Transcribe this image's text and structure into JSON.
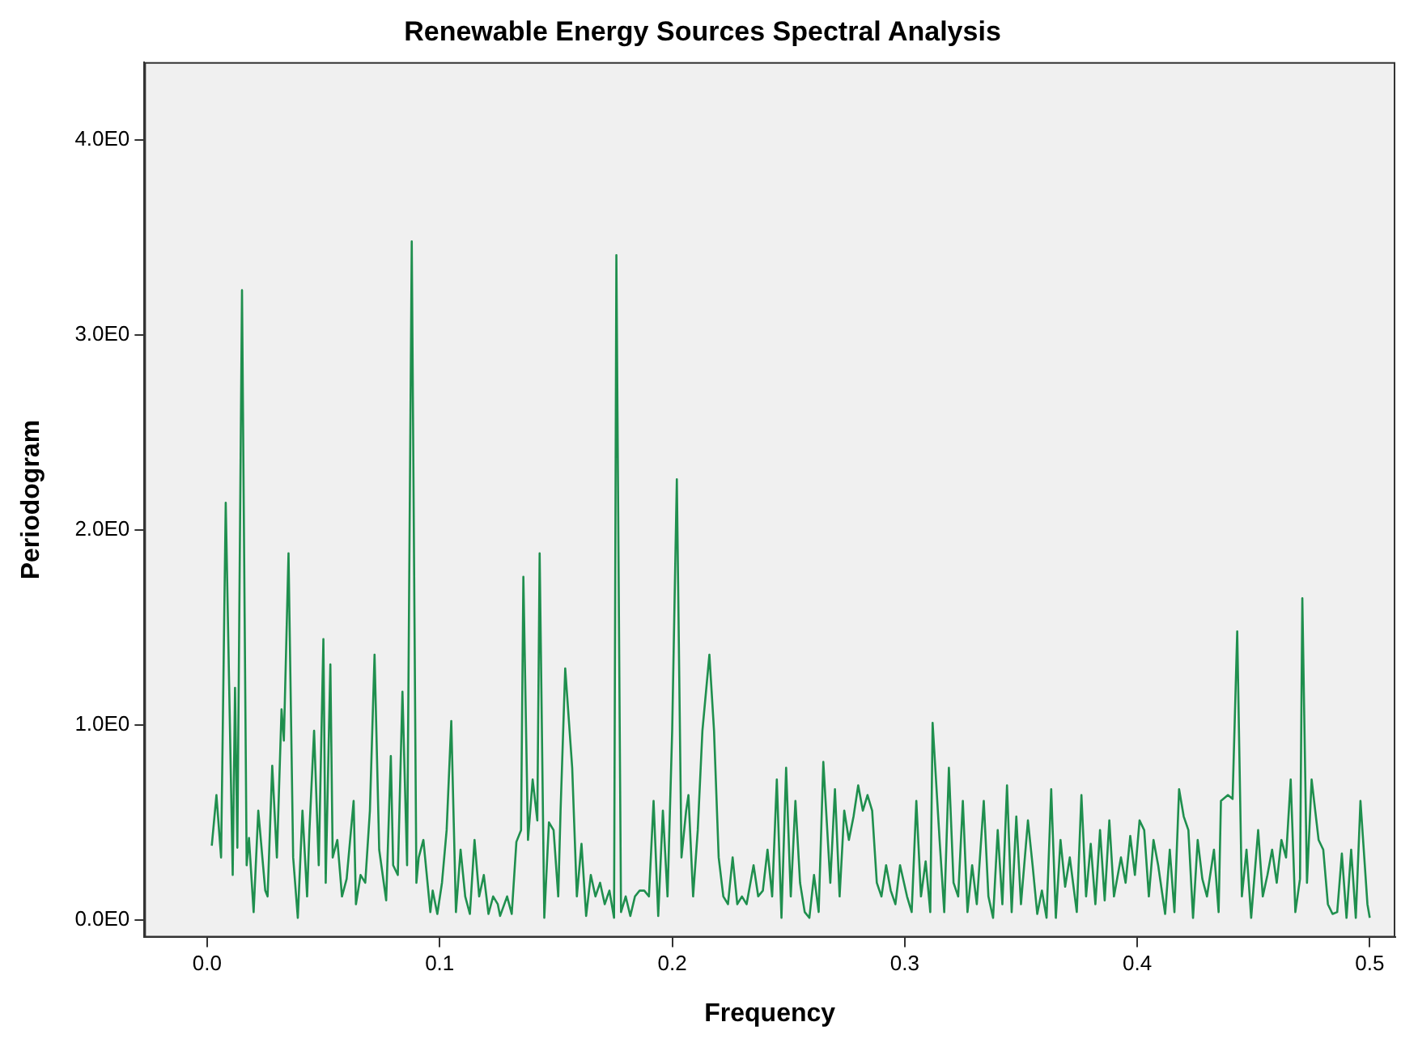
{
  "chart_data": {
    "type": "line",
    "title": "Renewable Energy Sources Spectral Analysis",
    "xlabel": "Frequency",
    "ylabel": "Periodogram",
    "grid": false,
    "legend": false,
    "marker": "none",
    "line_style": "solid",
    "xlim": [
      -0.027,
      0.511
    ],
    "xticks": [
      {
        "value": 0,
        "label": "0.0"
      },
      {
        "value": 0.1,
        "label": "0.1"
      },
      {
        "value": 0.2,
        "label": "0.2"
      },
      {
        "value": 0.3,
        "label": "0.3"
      },
      {
        "value": 0.4,
        "label": "0.4"
      },
      {
        "value": 0.5,
        "label": "0.5"
      }
    ],
    "ylim": [
      -0.09,
      4.4
    ],
    "yticks": [
      {
        "value": 0,
        "label": "0.0E0"
      },
      {
        "value": 1,
        "label": "1.0E0"
      },
      {
        "value": 2,
        "label": "2.0E0"
      },
      {
        "value": 3,
        "label": "3.0E0"
      },
      {
        "value": 4,
        "label": "4.0E0"
      }
    ],
    "series": [
      {
        "color": "#1f8f4e",
        "x": [
          0.002,
          0.004,
          0.006,
          0.008,
          0.011,
          0.012,
          0.013,
          0.015,
          0.017,
          0.018,
          0.02,
          0.022,
          0.025,
          0.026,
          0.028,
          0.03,
          0.032,
          0.033,
          0.035,
          0.037,
          0.039,
          0.041,
          0.043,
          0.044,
          0.046,
          0.048,
          0.05,
          0.051,
          0.053,
          0.054,
          0.056,
          0.058,
          0.06,
          0.063,
          0.064,
          0.066,
          0.068,
          0.07,
          0.072,
          0.074,
          0.077,
          0.079,
          0.08,
          0.082,
          0.084,
          0.086,
          0.088,
          0.09,
          0.091,
          0.093,
          0.096,
          0.097,
          0.099,
          0.101,
          0.103,
          0.105,
          0.107,
          0.109,
          0.111,
          0.113,
          0.115,
          0.117,
          0.119,
          0.121,
          0.123,
          0.125,
          0.126,
          0.129,
          0.131,
          0.133,
          0.135,
          0.136,
          0.138,
          0.14,
          0.142,
          0.143,
          0.145,
          0.147,
          0.149,
          0.151,
          0.152,
          0.154,
          0.157,
          0.159,
          0.161,
          0.163,
          0.165,
          0.167,
          0.169,
          0.171,
          0.173,
          0.175,
          0.176,
          0.178,
          0.18,
          0.182,
          0.184,
          0.186,
          0.188,
          0.19,
          0.192,
          0.194,
          0.196,
          0.198,
          0.2,
          0.202,
          0.204,
          0.206,
          0.207,
          0.209,
          0.211,
          0.213,
          0.216,
          0.218,
          0.22,
          0.222,
          0.224,
          0.226,
          0.228,
          0.23,
          0.232,
          0.235,
          0.237,
          0.239,
          0.241,
          0.243,
          0.245,
          0.247,
          0.249,
          0.251,
          0.253,
          0.255,
          0.257,
          0.259,
          0.261,
          0.263,
          0.265,
          0.268,
          0.27,
          0.272,
          0.274,
          0.276,
          0.278,
          0.28,
          0.282,
          0.284,
          0.286,
          0.288,
          0.29,
          0.292,
          0.294,
          0.296,
          0.298,
          0.301,
          0.303,
          0.305,
          0.307,
          0.309,
          0.311,
          0.312,
          0.315,
          0.317,
          0.319,
          0.321,
          0.323,
          0.325,
          0.327,
          0.329,
          0.331,
          0.334,
          0.336,
          0.338,
          0.34,
          0.342,
          0.344,
          0.346,
          0.348,
          0.35,
          0.353,
          0.355,
          0.357,
          0.359,
          0.361,
          0.363,
          0.365,
          0.367,
          0.369,
          0.371,
          0.374,
          0.376,
          0.378,
          0.38,
          0.382,
          0.384,
          0.386,
          0.388,
          0.39,
          0.393,
          0.395,
          0.397,
          0.399,
          0.401,
          0.403,
          0.405,
          0.407,
          0.409,
          0.412,
          0.414,
          0.416,
          0.418,
          0.42,
          0.422,
          0.424,
          0.426,
          0.428,
          0.43,
          0.433,
          0.435,
          0.436,
          0.439,
          0.441,
          0.443,
          0.445,
          0.447,
          0.449,
          0.452,
          0.454,
          0.456,
          0.458,
          0.46,
          0.462,
          0.464,
          0.466,
          0.468,
          0.47,
          0.471,
          0.473,
          0.475,
          0.478,
          0.48,
          0.482,
          0.484,
          0.486,
          0.488,
          0.49,
          0.492,
          0.494,
          0.496,
          0.499,
          0.5
        ],
        "values": [
          0.38,
          0.64,
          0.32,
          2.14,
          0.23,
          1.19,
          0.37,
          3.23,
          0.28,
          0.42,
          0.04,
          0.56,
          0.15,
          0.12,
          0.79,
          0.32,
          1.08,
          0.92,
          1.88,
          0.32,
          0.01,
          0.56,
          0.12,
          0.46,
          0.97,
          0.28,
          1.44,
          0.19,
          1.31,
          0.32,
          0.41,
          0.12,
          0.21,
          0.61,
          0.08,
          0.23,
          0.19,
          0.56,
          1.36,
          0.36,
          0.1,
          0.84,
          0.28,
          0.23,
          1.17,
          0.28,
          3.48,
          0.19,
          0.32,
          0.41,
          0.04,
          0.15,
          0.03,
          0.19,
          0.46,
          1.02,
          0.04,
          0.36,
          0.12,
          0.03,
          0.41,
          0.12,
          0.23,
          0.03,
          0.12,
          0.08,
          0.02,
          0.12,
          0.03,
          0.4,
          0.46,
          1.76,
          0.41,
          0.72,
          0.51,
          1.88,
          0.01,
          0.5,
          0.46,
          0.12,
          0.56,
          1.29,
          0.78,
          0.12,
          0.39,
          0.02,
          0.23,
          0.12,
          0.19,
          0.08,
          0.15,
          0.01,
          3.41,
          0.04,
          0.12,
          0.02,
          0.12,
          0.15,
          0.15,
          0.12,
          0.61,
          0.02,
          0.56,
          0.12,
          0.97,
          2.26,
          0.32,
          0.56,
          0.64,
          0.12,
          0.46,
          0.97,
          1.36,
          0.97,
          0.32,
          0.12,
          0.08,
          0.32,
          0.08,
          0.12,
          0.08,
          0.28,
          0.12,
          0.15,
          0.36,
          0.12,
          0.72,
          0.01,
          0.78,
          0.12,
          0.61,
          0.19,
          0.04,
          0.01,
          0.23,
          0.04,
          0.81,
          0.19,
          0.67,
          0.12,
          0.56,
          0.41,
          0.53,
          0.69,
          0.56,
          0.64,
          0.56,
          0.19,
          0.12,
          0.28,
          0.15,
          0.08,
          0.28,
          0.12,
          0.04,
          0.61,
          0.12,
          0.3,
          0.04,
          1.01,
          0.41,
          0.04,
          0.78,
          0.19,
          0.12,
          0.61,
          0.04,
          0.28,
          0.08,
          0.61,
          0.12,
          0.01,
          0.46,
          0.08,
          0.69,
          0.04,
          0.53,
          0.08,
          0.51,
          0.28,
          0.03,
          0.15,
          0.01,
          0.67,
          0.01,
          0.41,
          0.17,
          0.32,
          0.04,
          0.64,
          0.12,
          0.39,
          0.08,
          0.46,
          0.1,
          0.51,
          0.12,
          0.32,
          0.19,
          0.43,
          0.23,
          0.51,
          0.46,
          0.12,
          0.41,
          0.28,
          0.03,
          0.36,
          0.04,
          0.67,
          0.53,
          0.46,
          0.01,
          0.41,
          0.21,
          0.12,
          0.36,
          0.04,
          0.61,
          0.64,
          0.62,
          1.48,
          0.12,
          0.36,
          0.01,
          0.46,
          0.12,
          0.23,
          0.36,
          0.19,
          0.41,
          0.32,
          0.72,
          0.04,
          0.21,
          1.65,
          0.19,
          0.72,
          0.41,
          0.36,
          0.08,
          0.03,
          0.04,
          0.34,
          0.01,
          0.36,
          0.01,
          0.61,
          0.08,
          0.01
        ]
      }
    ]
  }
}
